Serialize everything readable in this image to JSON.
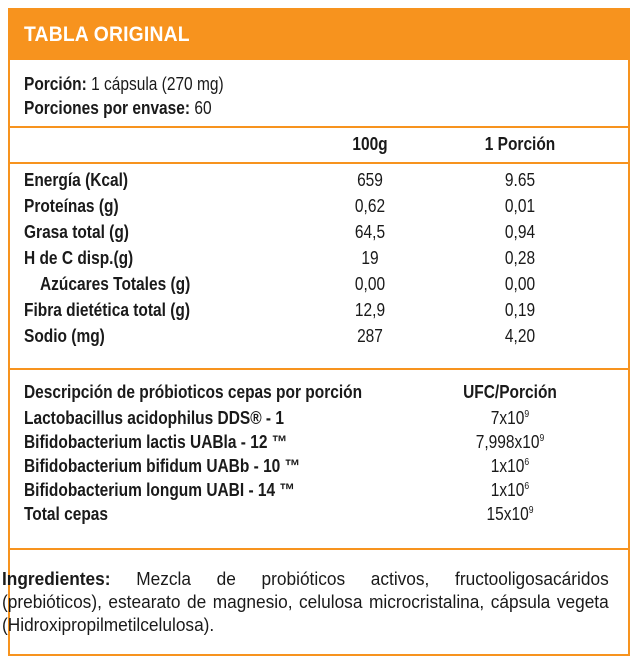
{
  "header": {
    "title": "TABLA ORIGINAL"
  },
  "serving": {
    "portion_label": "Porción:",
    "portion_value": "1 cápsula (270 mg)",
    "per_pack_label": "Porciones por envase:",
    "per_pack_value": "60"
  },
  "nutrition": {
    "col_100g": "100g",
    "col_portion": "1 Porción",
    "rows": [
      {
        "label": "Energía (Kcal)",
        "per100": "659",
        "portion": "9.65"
      },
      {
        "label": "Proteínas (g)",
        "per100": "0,62",
        "portion": "0,01"
      },
      {
        "label": "Grasa total (g)",
        "per100": "64,5",
        "portion": "0,94"
      },
      {
        "label": "H de C disp.(g)",
        "per100": "19",
        "portion": "0,28"
      },
      {
        "label": "Azúcares Totales (g)",
        "per100": "0,00",
        "portion": "0,00"
      },
      {
        "label": "Fibra dietética total (g)",
        "per100": "12,9",
        "portion": "0,19"
      },
      {
        "label": "Sodio (mg)",
        "per100": "287",
        "portion": "4,20"
      }
    ]
  },
  "probiotics": {
    "title": "Descripción de próbioticos cepas por porción",
    "col_ufc": "UFC/Porción",
    "rows": [
      {
        "label": "Lactobacillus acidophilus DDS® - 1",
        "base": "7x10",
        "exp": "9"
      },
      {
        "label": "Bifidobacterium lactis UABla - 12 ™",
        "base": "7,998x10",
        "exp": "9"
      },
      {
        "label": "Bifidobacterium bifidum UABb - 10 ™",
        "base": "1x10",
        "exp": "6"
      },
      {
        "label": "Bifidobacterium longum UABI - 14 ™",
        "base": "1x10",
        "exp": "6"
      },
      {
        "label": "Total cepas",
        "base": "15x10",
        "exp": "9"
      }
    ]
  },
  "ingredients": {
    "label": "Ingredientes:",
    "text": "Mezcla de probióticos activos, fructooligosacáridos (prebióticos), estearato de magnesio, celulosa microcristalina, cápsula vegeta (Hidroxipropilmetilcelulosa)."
  },
  "colors": {
    "accent": "#f7931e",
    "text": "#1a1a1a",
    "header_text": "#ffffff"
  }
}
